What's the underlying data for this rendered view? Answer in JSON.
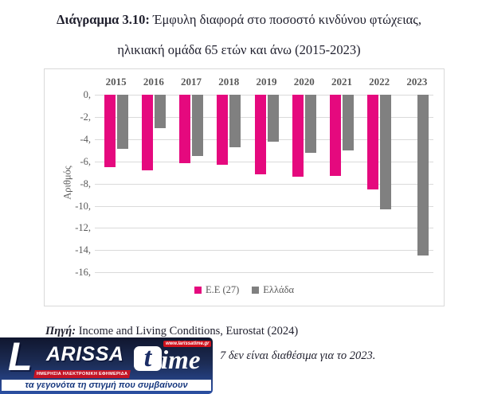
{
  "title": {
    "part_bold": "Διάγραμμα 3.10:",
    "part_rest": " Έμφυλη διαφορά στο ποσοστό κινδύνου φτώχειας,",
    "line2": "ηλικιακή ομάδα 65 ετών και άνω (2015-2023)"
  },
  "chart_data": {
    "type": "bar",
    "title": "Διάγραμμα 3.10: Έμφυλη διαφορά στο ποσοστό κινδύνου φτώχειας, ηλικιακή ομάδα 65 ετών και άνω (2015-2023)",
    "categories": [
      "2015",
      "2016",
      "2017",
      "2018",
      "2019",
      "2020",
      "2021",
      "2022",
      "2023"
    ],
    "series": [
      {
        "name": "Ε.Ε (27)",
        "color": "#e5097e",
        "values": [
          -6.5,
          -6.8,
          -6.2,
          -6.3,
          -7.2,
          -7.4,
          -7.3,
          -8.5,
          null
        ]
      },
      {
        "name": "Ελλάδα",
        "color": "#808080",
        "values": [
          -4.9,
          -3.0,
          -5.5,
          -4.7,
          -4.2,
          -5.2,
          -5.0,
          -10.3,
          -14.5
        ]
      }
    ],
    "xlabel": "",
    "ylabel": "Αριθμός",
    "ylim": [
      -16,
      0
    ],
    "ytick_labels": [
      "0,",
      "-2,",
      "-4,",
      "-6,",
      "-8,",
      "-10,",
      "-12,",
      "-14,",
      "-16,"
    ],
    "grid": true,
    "legend_position": "bottom-center"
  },
  "source": {
    "prefix": "Πηγή:",
    "text": " Income and Living Conditions, Eurostat (2024)"
  },
  "note": {
    "visible_fragment": "7 δεν είναι διαθέσιμα για το 2023."
  },
  "watermark": {
    "brand_l": "L",
    "brand_arissa": "ARISSA",
    "brand_t": "t",
    "brand_ime": "ime",
    "url": "www.larissatime.gr",
    "ribbon": "ΗΜΕΡΗΣΙΑ ΗΛΕΚΤΡΟΝΙΚΗ ΕΦΗΜΕΡΙΔΑ",
    "tagline": "τα γεγονότα τη στιγμή που συμβαίνουν",
    "colors": {
      "blue_top": "#10162e",
      "blue_bottom": "#2b4fa3",
      "red": "#c41425"
    }
  }
}
